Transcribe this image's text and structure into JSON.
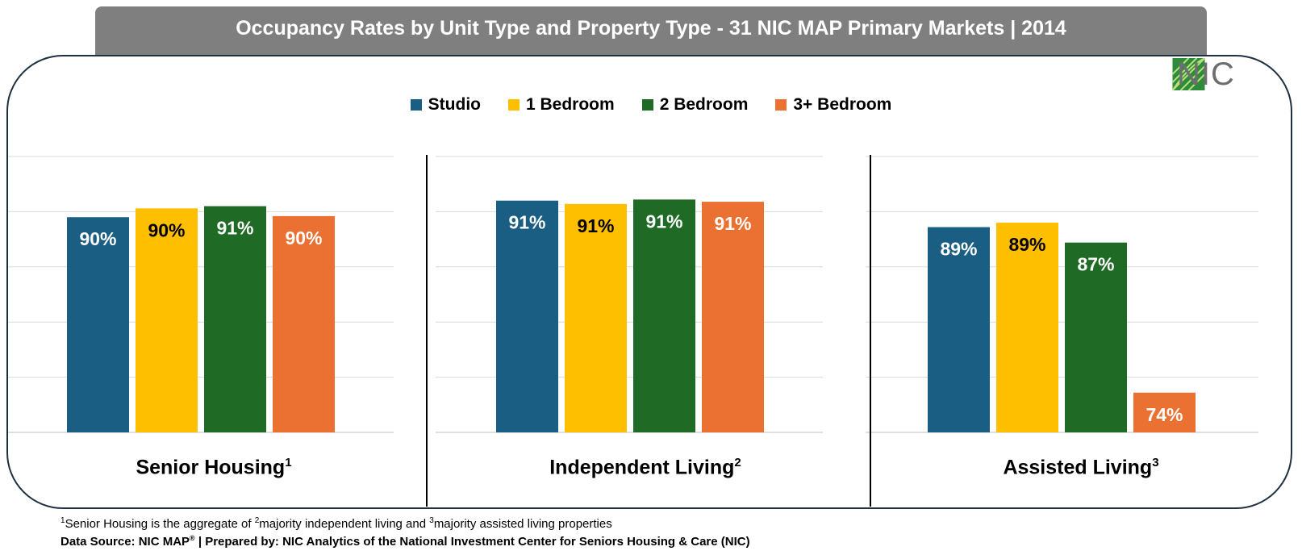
{
  "title": "Occupancy Rates by Unit Type and Property Type  - 31 NIC MAP Primary Markets | 2014",
  "logo_text": "NIC",
  "colors": {
    "studio": "#1a5f83",
    "one_bedroom": "#fdbf00",
    "two_bedroom": "#1f6b25",
    "three_plus": "#ea7131",
    "title_bar": "#7f7f7f",
    "grid": "#d9d9d9"
  },
  "chart_data": {
    "type": "bar",
    "legend_position": "top-center",
    "categories": [
      "Senior Housing",
      "Independent Living",
      "Assisted Living"
    ],
    "category_superscripts": [
      "1",
      "2",
      "3"
    ],
    "series": [
      {
        "name": "Studio",
        "values": [
          89.5,
          91.0,
          88.6
        ],
        "labels": [
          "90%",
          "91%",
          "89%"
        ]
      },
      {
        "name": "1 Bedroom",
        "values": [
          90.3,
          90.7,
          89.0
        ],
        "labels": [
          "90%",
          "91%",
          "89%"
        ]
      },
      {
        "name": "2 Bedroom",
        "values": [
          90.5,
          91.1,
          87.2
        ],
        "labels": [
          "91%",
          "91%",
          "87%"
        ]
      },
      {
        "name": "3+ Bedroom",
        "values": [
          89.6,
          90.9,
          73.6
        ],
        "labels": [
          "90%",
          "91%",
          "74%"
        ]
      }
    ],
    "ylim": [
      70,
      95
    ],
    "grid": true
  },
  "footnote": {
    "sup1": "1",
    "part1": "Senior Housing is the aggregate of ",
    "sup2": "2",
    "part2": "majority independent living and ",
    "sup3": "3",
    "part3": "majority assisted living properties"
  },
  "source": {
    "part1": "Data Source: NIC MAP",
    "reg": "®",
    "part2": " | Prepared by: NIC Analytics of the National Investment Center for Seniors Housing & Care (NIC)"
  }
}
